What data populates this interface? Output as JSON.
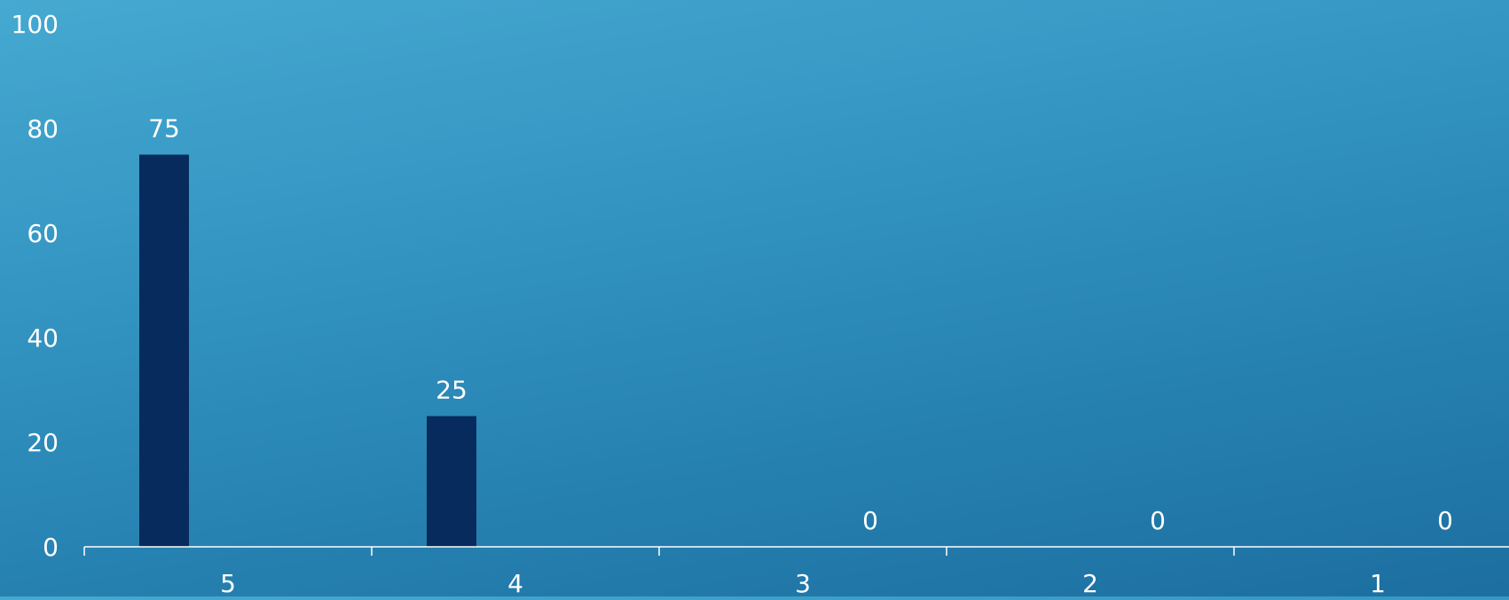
{
  "chart_data": {
    "type": "bar",
    "categories": [
      "5",
      "4",
      "3",
      "2",
      "1"
    ],
    "series": [
      {
        "values": [
          75,
          25,
          0,
          0,
          0
        ]
      }
    ],
    "data_labels": [
      "75",
      "25",
      "0",
      "0",
      "0"
    ],
    "y_ticks": [
      "0",
      "20",
      "40",
      "60",
      "80",
      "100"
    ],
    "ylim": [
      0,
      100
    ],
    "title": "",
    "xlabel": "",
    "ylabel": "",
    "grid": false,
    "legend": "none",
    "colors": {
      "bar": "#062b5c",
      "axis": "#ffffff",
      "text": "#ffffff"
    }
  }
}
